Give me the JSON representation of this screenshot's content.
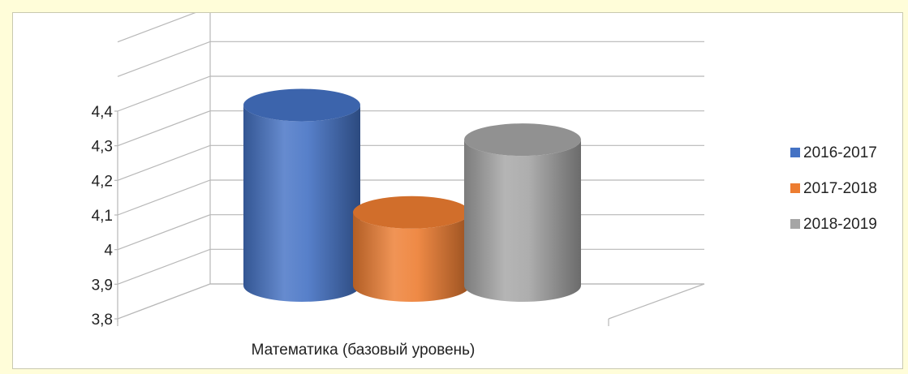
{
  "chart_data": {
    "type": "bar",
    "style": "3d-cylinder",
    "categories": [
      "Математика (базовый уровень)"
    ],
    "series": [
      {
        "name": "2016-2017",
        "values": [
          4.4
        ],
        "color": "#4472c4"
      },
      {
        "name": "2017-2018",
        "values": [
          4.09
        ],
        "color": "#ed7d31"
      },
      {
        "name": "2018-2019",
        "values": [
          4.3
        ],
        "color": "#a5a5a5"
      }
    ],
    "ylim": [
      3.8,
      4.4
    ],
    "yticks": [
      "3,8",
      "3,9",
      "4",
      "4,1",
      "4,2",
      "4,3",
      "4,4"
    ],
    "grid": true,
    "legend": "right"
  }
}
